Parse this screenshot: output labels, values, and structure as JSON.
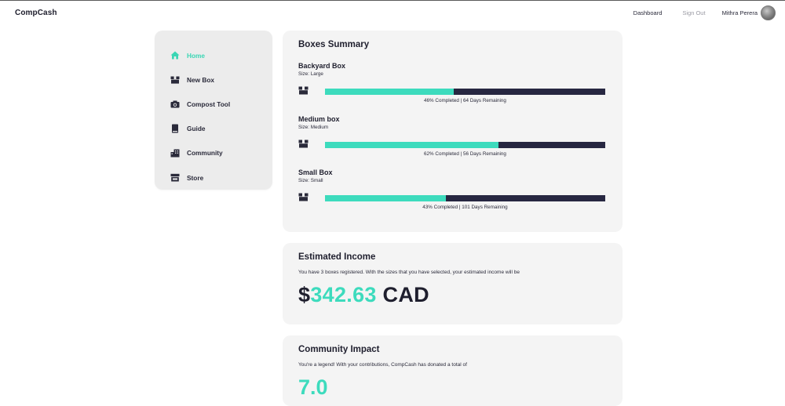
{
  "header": {
    "brand": "CompCash",
    "nav": {
      "dashboard": "Dashboard",
      "sign_out": "Sign Out"
    },
    "user_name": "Mithra Perera"
  },
  "sidebar": {
    "items": [
      {
        "label": "Home",
        "icon": "home-icon",
        "active": true
      },
      {
        "label": "New Box",
        "icon": "box-icon",
        "active": false
      },
      {
        "label": "Compost Tool",
        "icon": "camera-icon",
        "active": false
      },
      {
        "label": "Guide",
        "icon": "book-icon",
        "active": false
      },
      {
        "label": "Community",
        "icon": "community-icon",
        "active": false
      },
      {
        "label": "Store",
        "icon": "store-icon",
        "active": false
      }
    ]
  },
  "summary": {
    "title": "Boxes Summary",
    "boxes": [
      {
        "name": "Backyard Box",
        "size": "Size: Large",
        "progress": 0.46,
        "status": "46% Completed | 64 Days Remaining"
      },
      {
        "name": "Medium box",
        "size": "Size: Medium",
        "progress": 0.62,
        "status": "62% Completed | 56 Days Remaining"
      },
      {
        "name": "Small Box",
        "size": "Size: Small",
        "progress": 0.43,
        "status": "43% Completed | 101 Days Remaining"
      }
    ]
  },
  "income": {
    "title": "Estimated Income",
    "text": "You have 3 boxes registered. With the sizes that you have selected, your estimated income will be",
    "symbol": "$",
    "amount": "342.63",
    "currency": " CAD"
  },
  "impact": {
    "title": "Community Impact",
    "text": "You're a legend! With your contributions, CompCash has donated a total of",
    "amount": "7.0"
  },
  "colors": {
    "accent": "#3ddbbd",
    "dark": "#272741",
    "card_bg": "#f4f4f4",
    "sidebar_bg": "#ececec"
  }
}
